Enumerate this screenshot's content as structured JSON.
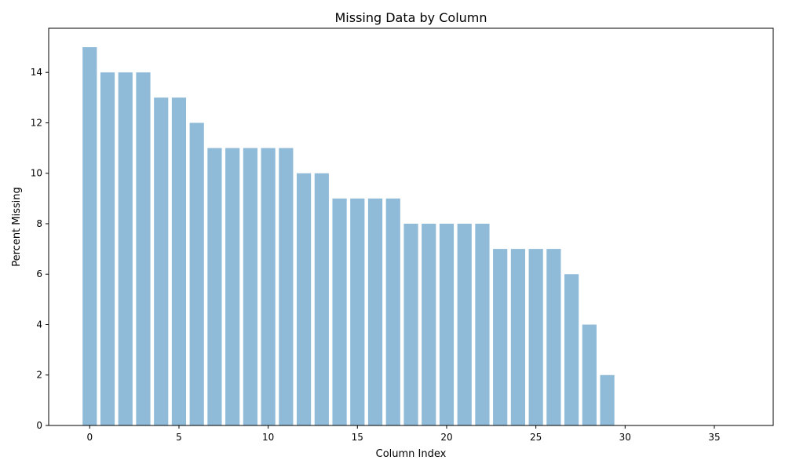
{
  "chart_data": {
    "type": "bar",
    "title": "Missing Data by Column",
    "xlabel": "Column Index",
    "ylabel": "Percent Missing",
    "x": [
      0,
      1,
      2,
      3,
      4,
      5,
      6,
      7,
      8,
      9,
      10,
      11,
      12,
      13,
      14,
      15,
      16,
      17,
      18,
      19,
      20,
      21,
      22,
      23,
      24,
      25,
      26,
      27,
      28,
      29
    ],
    "values": [
      15,
      14,
      14,
      14,
      13,
      13,
      12,
      11,
      11,
      11,
      11,
      11,
      10,
      10,
      9,
      9,
      9,
      9,
      8,
      8,
      8,
      8,
      8,
      7,
      7,
      7,
      7,
      6,
      4,
      2
    ],
    "xlim": [
      -2.3,
      38.3
    ],
    "ylim": [
      0,
      15.75
    ],
    "x_ticks": [
      0,
      5,
      10,
      15,
      20,
      25,
      30,
      35
    ],
    "y_ticks": [
      0,
      2,
      4,
      6,
      8,
      10,
      12,
      14
    ],
    "grid": false,
    "bar_color": "#8fbbd9"
  }
}
